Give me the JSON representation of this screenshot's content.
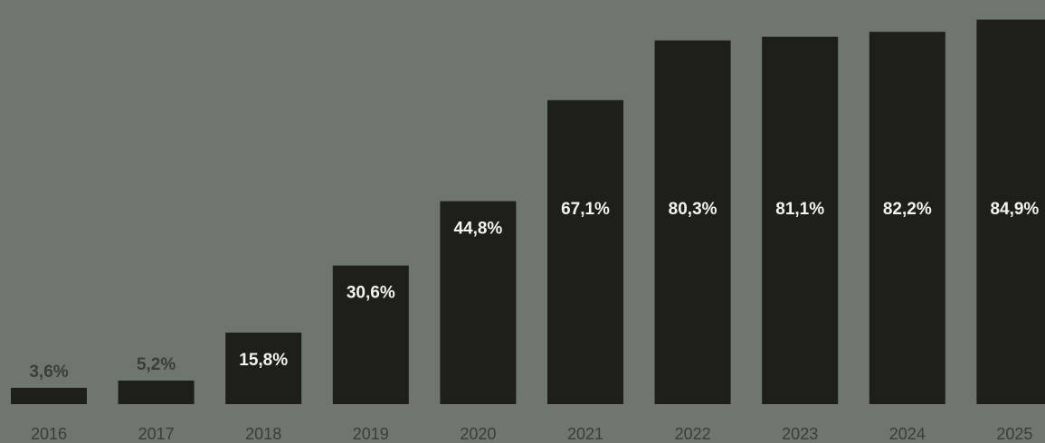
{
  "chart_data": {
    "type": "bar",
    "categories": [
      "2016",
      "2017",
      "2018",
      "2019",
      "2020",
      "2021",
      "2022",
      "2023",
      "2024",
      "2025"
    ],
    "values": [
      3.6,
      5.2,
      15.8,
      30.6,
      44.8,
      67.1,
      80.3,
      81.1,
      82.2,
      84.9
    ],
    "labels": [
      "3,6%",
      "5,2%",
      "15,8%",
      "30,6%",
      "44,8%",
      "67,1%",
      "80,3%",
      "81,1%",
      "82,2%",
      "84,9%"
    ],
    "title": "",
    "xlabel": "",
    "ylabel": "",
    "ylim": [
      0,
      100
    ],
    "grid": false,
    "colors": {
      "background": "#6f766d",
      "bar": "#1e1f1b",
      "label_inside": "#f2f2ee",
      "label_outside": "#3a3e38",
      "tick": "#3a3e38"
    }
  }
}
